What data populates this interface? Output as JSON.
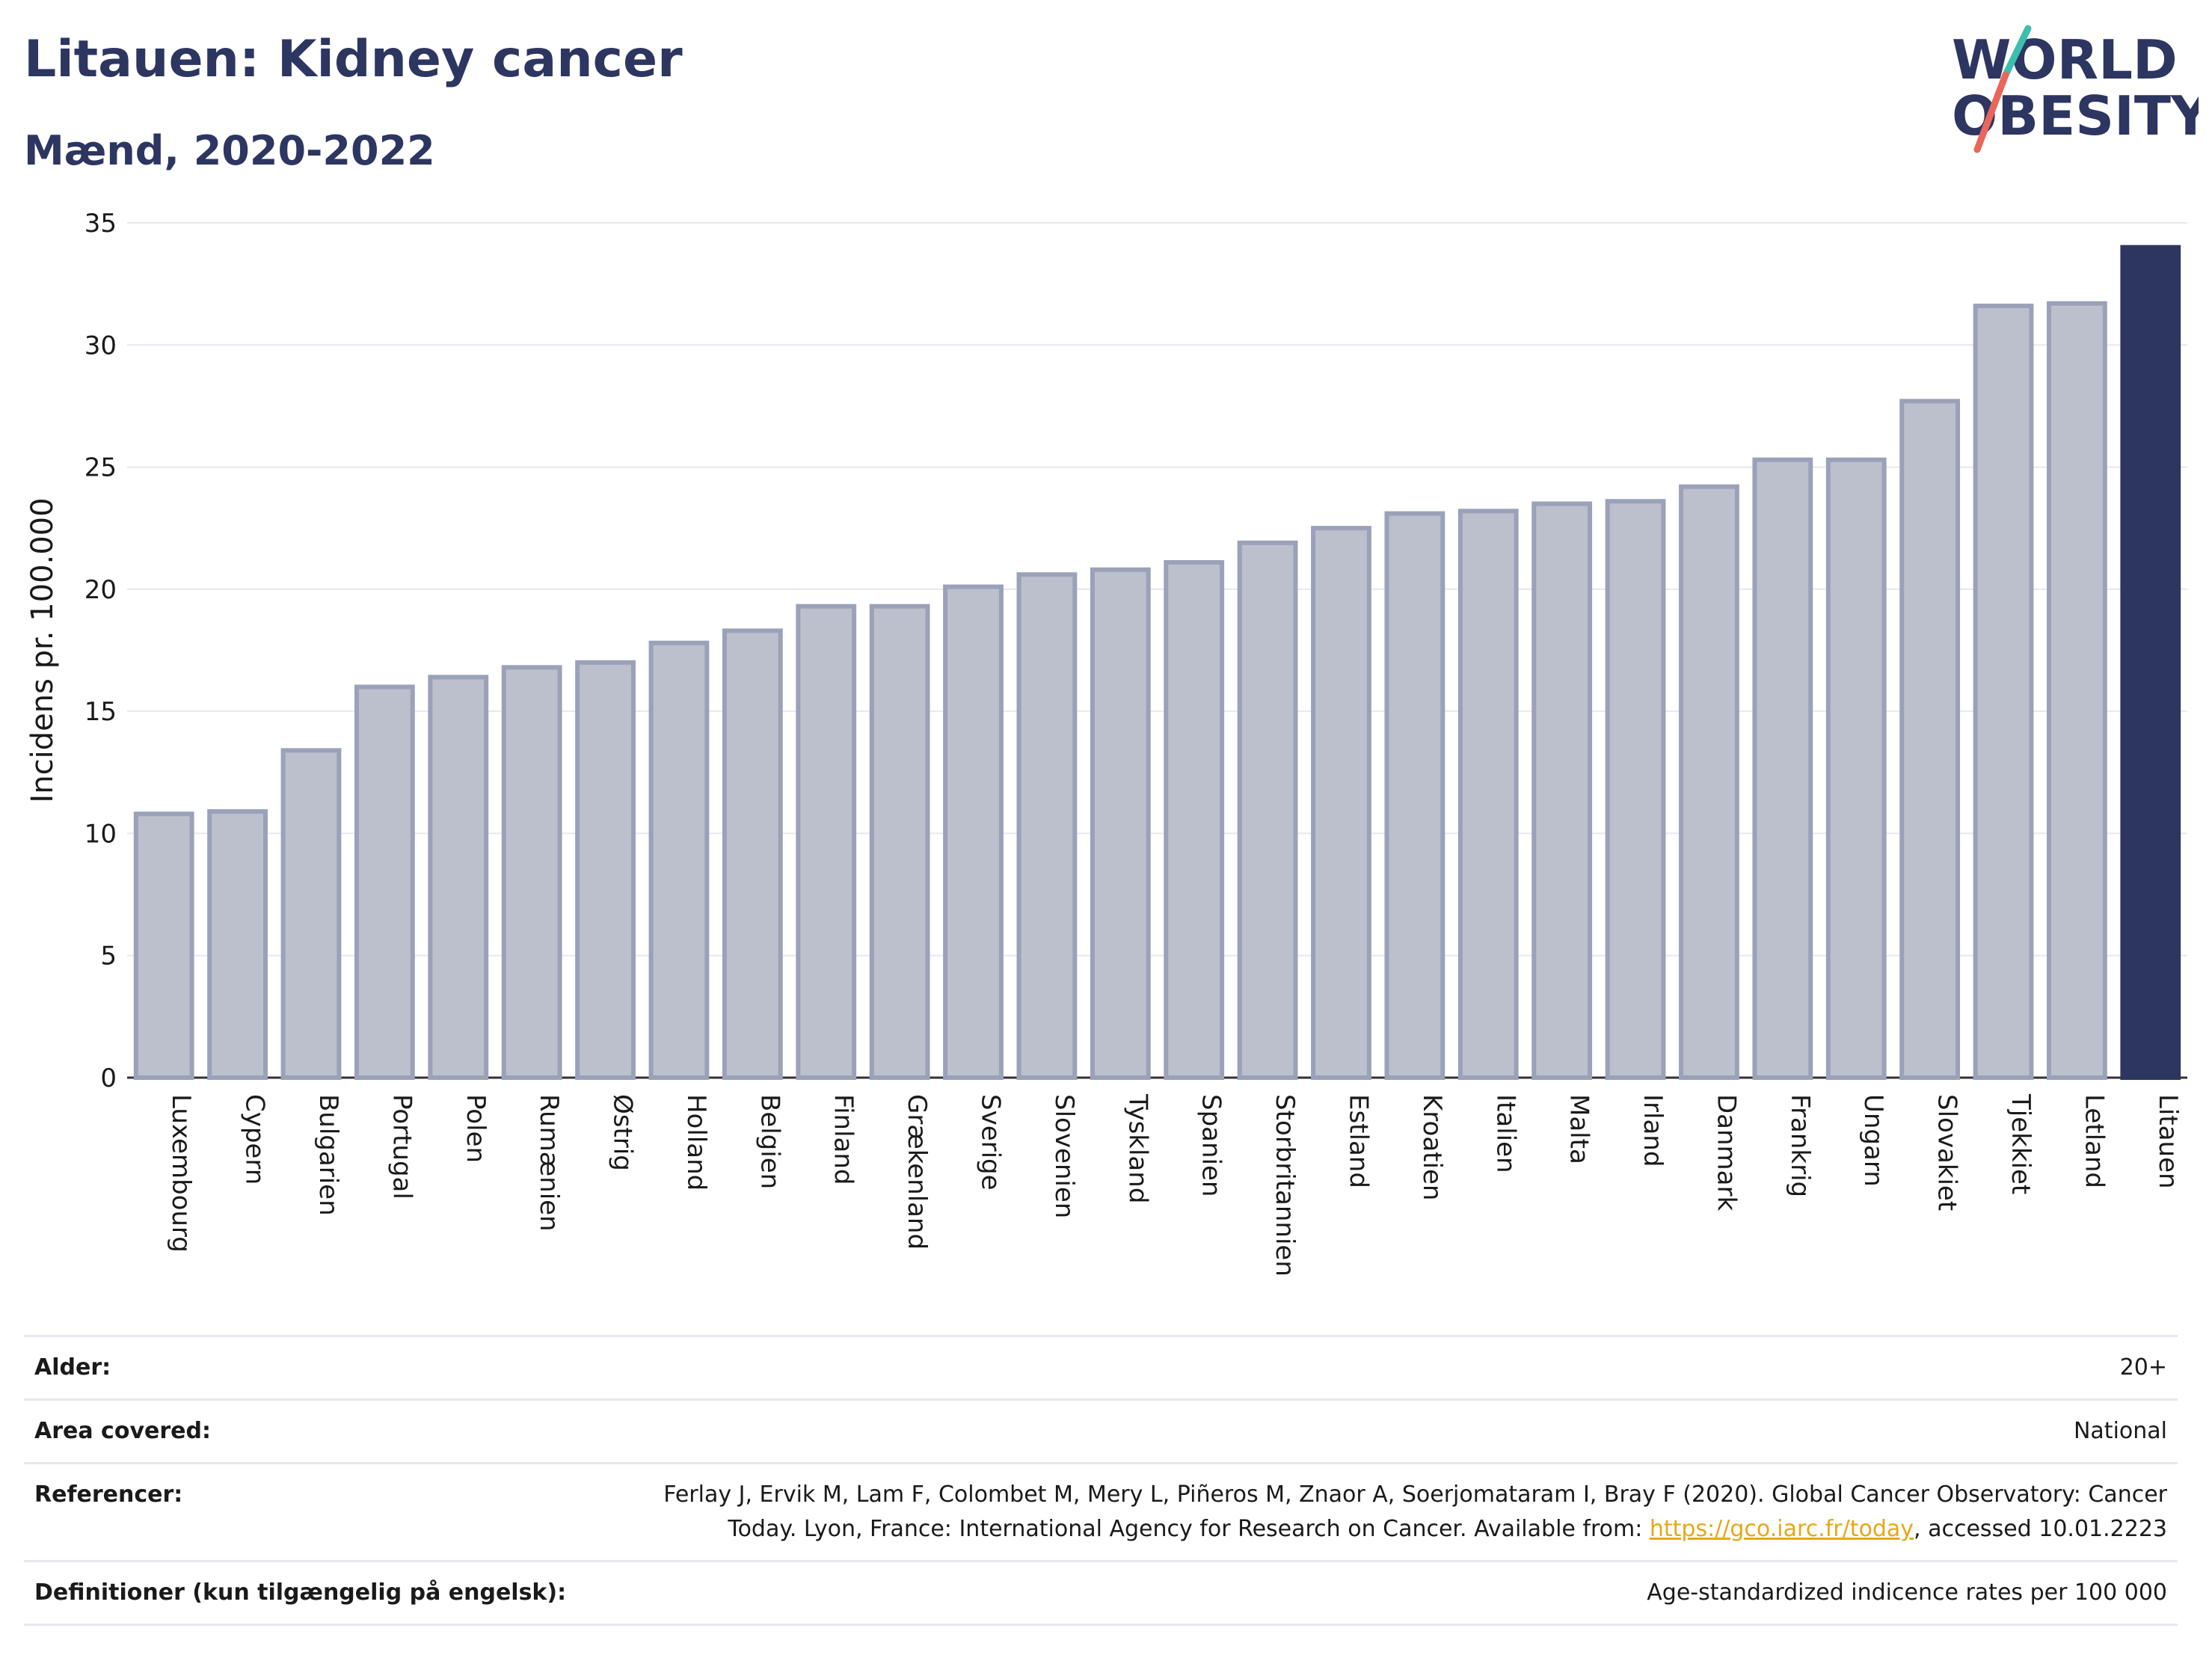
{
  "header": {
    "title": "Litauen: Kidney cancer",
    "subtitle": "Mænd, 2020-2022",
    "logo_line1": "WORLD",
    "logo_line2": "OBESITY"
  },
  "colors": {
    "bar_default": "#bcc0cd",
    "bar_default_stroke": "#9aa1b8",
    "bar_highlight": "#2d3561",
    "title": "#2d3561",
    "link": "#e6a817",
    "logo_slash_teal": "#3cbfae",
    "logo_slash_red": "#e8675a"
  },
  "chart_data": {
    "type": "bar",
    "ylabel": "Incidens pr. 100.000",
    "xlabel": "",
    "ylim": [
      0,
      35
    ],
    "yticks": [
      "0",
      "5",
      "10",
      "15",
      "20",
      "25",
      "30",
      "35"
    ],
    "grid": true,
    "categories": [
      "Luxembourg",
      "Cypern",
      "Bulgarien",
      "Portugal",
      "Polen",
      "Rumænien",
      "Østrig",
      "Holland",
      "Belgien",
      "Finland",
      "Grækenland",
      "Sverige",
      "Slovenien",
      "Tyskland",
      "Spanien",
      "Storbritannien",
      "Estland",
      "Kroatien",
      "Italien",
      "Malta",
      "Irland",
      "Danmark",
      "Frankrig",
      "Ungarn",
      "Slovakiet",
      "Tjekkiet",
      "Letland",
      "Litauen"
    ],
    "values": [
      10.8,
      10.9,
      13.4,
      16.0,
      16.4,
      16.8,
      17.0,
      17.8,
      18.3,
      19.3,
      19.3,
      20.1,
      20.6,
      20.8,
      21.1,
      21.9,
      22.5,
      23.1,
      23.2,
      23.5,
      23.6,
      24.2,
      25.3,
      25.3,
      27.7,
      31.6,
      31.7,
      34.0
    ],
    "highlight": "Litauen"
  },
  "info": [
    {
      "key": "Alder:",
      "value": "20+"
    },
    {
      "key": "Area covered:",
      "value": "National"
    },
    {
      "key": "Referencer:",
      "value_line1": "Ferlay J, Ervik M, Lam F, Colombet M, Mery L, Piñeros M, Znaor A, Soerjomataram I, Bray F (2020). Global Cancer Observatory: Cancer",
      "value_line2_pre": "Today. Lyon, France: International Agency for Research on Cancer. Available from: ",
      "link": "https://gco.iarc.fr/today",
      "value_line2_post": ", accessed 10.01.2223"
    },
    {
      "key": "Definitioner (kun tilgængelig på engelsk):",
      "value": "Age-standardized indicence rates per 100 000"
    }
  ]
}
